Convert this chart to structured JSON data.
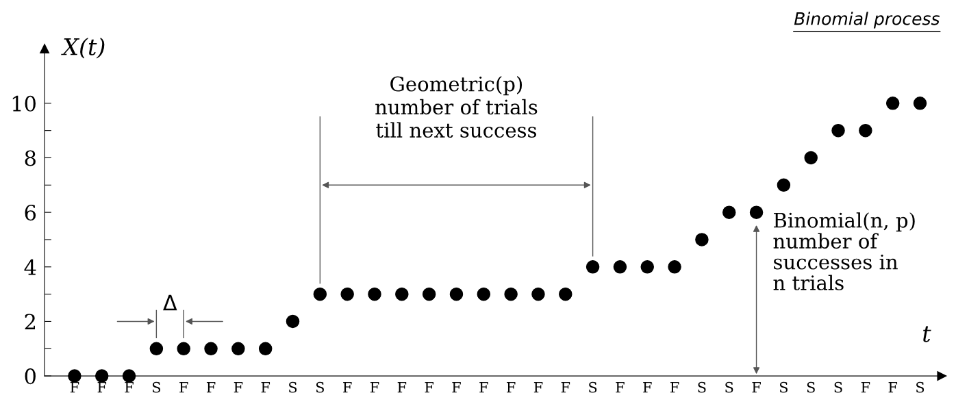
{
  "chart_data": {
    "type": "scatter",
    "title": "Binomial process",
    "xlabel": "t",
    "ylabel": "X(t)",
    "categories": [
      "F",
      "F",
      "F",
      "S",
      "F",
      "F",
      "F",
      "F",
      "S",
      "S",
      "F",
      "F",
      "F",
      "F",
      "F",
      "F",
      "F",
      "F",
      "F",
      "S",
      "F",
      "F",
      "F",
      "S",
      "S",
      "F",
      "S",
      "S",
      "S",
      "F",
      "F",
      "S"
    ],
    "series": [
      {
        "color": "#000000",
        "values": [
          0,
          0,
          0,
          1,
          1,
          1,
          1,
          1,
          2,
          3,
          3,
          3,
          3,
          3,
          3,
          3,
          3,
          3,
          3,
          4,
          4,
          4,
          4,
          5,
          6,
          6,
          7,
          8,
          9,
          9,
          10,
          10
        ]
      }
    ],
    "ylim": [
      0,
      12
    ],
    "yticks": [
      0,
      {
        "value": 1,
        "label": null
      },
      2,
      {
        "value": 3,
        "label": null
      },
      4,
      {
        "value": 5,
        "label": null
      },
      6,
      {
        "value": 7,
        "label": null
      },
      8,
      {
        "value": 9,
        "label": null
      },
      10
    ],
    "annotations": [
      "Δ",
      "Geometric(p)\nnumber of trials\ntill next success",
      "Binomial(n, p)\nnumber of\nsuccesses in\nn trials"
    ],
    "marker": "circle",
    "grid": false,
    "legend": false
  }
}
